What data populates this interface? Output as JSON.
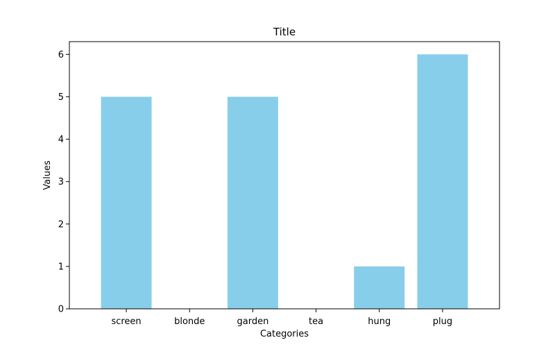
{
  "chart_data": {
    "type": "bar",
    "title": "Title",
    "xlabel": "Categories",
    "ylabel": "Values",
    "categories": [
      "screen",
      "blonde",
      "garden",
      "tea",
      "hung",
      "plug"
    ],
    "values": [
      5,
      0,
      5,
      0,
      1,
      6
    ],
    "ylim": [
      0,
      6.3
    ],
    "yticks": [
      "0",
      "1",
      "2",
      "3",
      "4",
      "5",
      "6"
    ],
    "bar_color": "#87ceeb",
    "grid": false,
    "legend": "none"
  }
}
